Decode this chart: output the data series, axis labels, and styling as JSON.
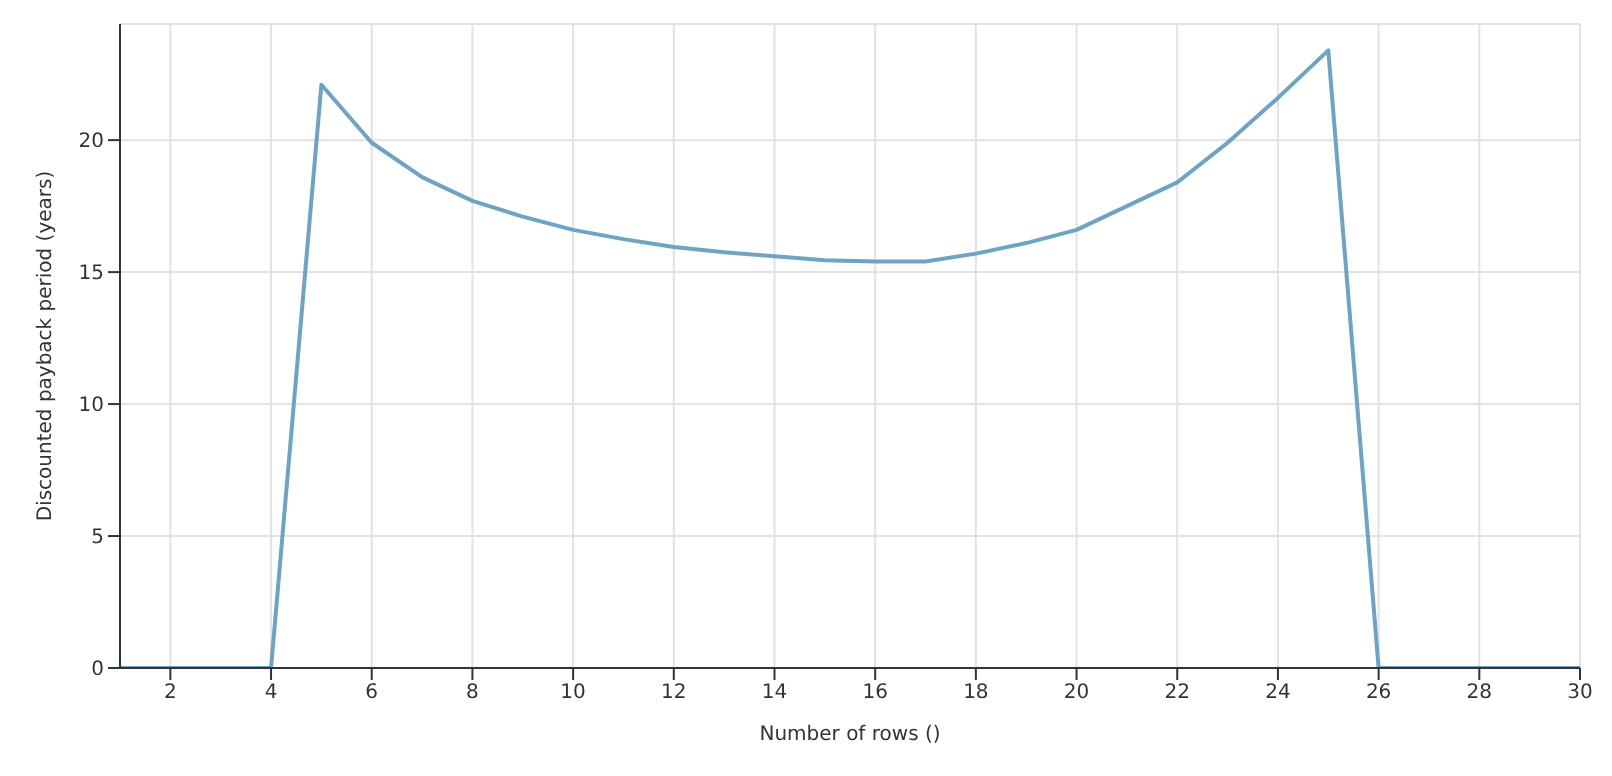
{
  "chart_data": {
    "type": "line",
    "xlabel": "Number of rows ()",
    "ylabel": "Discounted payback period (years)",
    "x": [
      1,
      2,
      3,
      4,
      5,
      6,
      7,
      8,
      9,
      10,
      11,
      12,
      13,
      14,
      15,
      16,
      17,
      18,
      19,
      20,
      21,
      22,
      23,
      24,
      25,
      26,
      27,
      28,
      29,
      30
    ],
    "series": [
      {
        "color": "#6fa3c4",
        "values": [
          0,
          0,
          0,
          0,
          22.1,
          19.9,
          18.6,
          17.7,
          17.1,
          16.6,
          16.25,
          15.95,
          15.75,
          15.6,
          15.45,
          15.4,
          15.4,
          15.7,
          16.1,
          16.6,
          17.5,
          18.4,
          19.9,
          21.6,
          23.4,
          0,
          0,
          0,
          0,
          0
        ]
      }
    ],
    "xlim": [
      1,
      30
    ],
    "xticks": [
      2,
      4,
      6,
      8,
      10,
      12,
      14,
      16,
      18,
      20,
      22,
      24,
      26,
      28,
      30
    ],
    "ylim": [
      0,
      24.4
    ],
    "yticks": [
      0,
      5,
      10,
      15,
      20
    ],
    "grid": true,
    "marker": "none",
    "line_style": "solid"
  }
}
